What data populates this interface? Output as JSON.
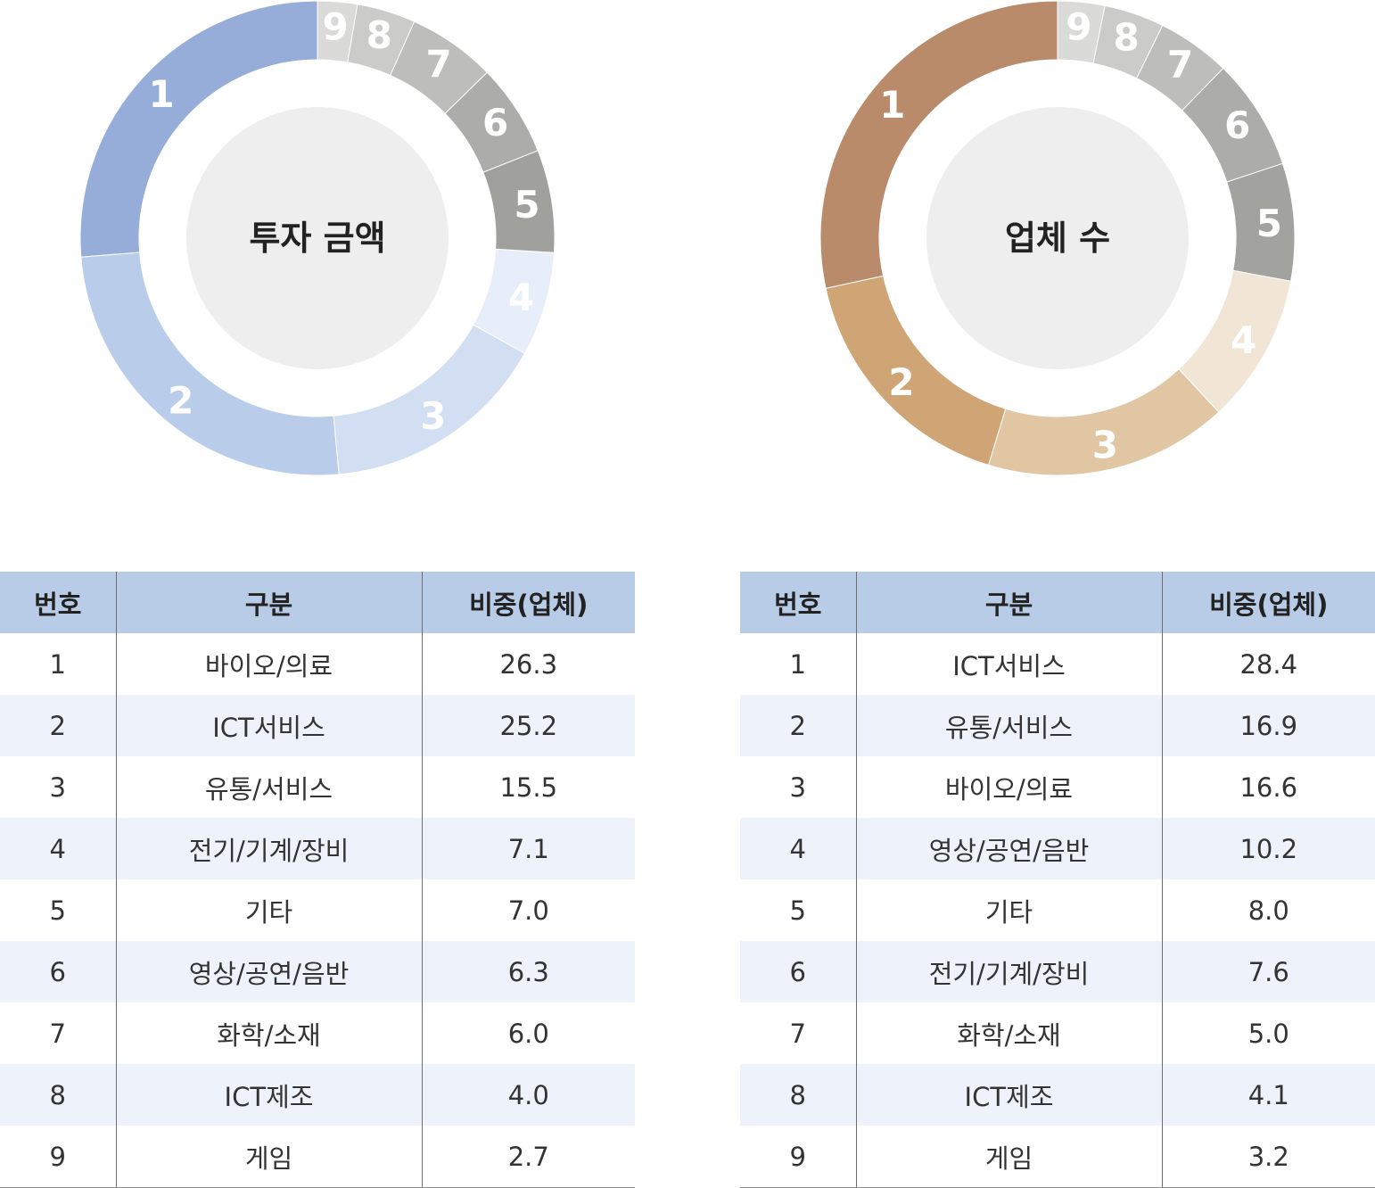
{
  "chart_data": [
    {
      "type": "donut",
      "title": "투자 금액",
      "labels": [
        "1",
        "2",
        "3",
        "4",
        "5",
        "6",
        "7",
        "8",
        "9"
      ],
      "categories": [
        "바이오/의료",
        "ICT서비스",
        "유통/서비스",
        "전기/기계/장비",
        "기타",
        "영상/공연/음반",
        "화학/소재",
        "ICT제조",
        "게임"
      ],
      "values": [
        26.3,
        25.2,
        15.5,
        7.1,
        7.0,
        6.3,
        6.0,
        4.0,
        2.7
      ],
      "colors": [
        "#96acd9",
        "#b9cdea",
        "#d2dff2",
        "#e7eef9",
        "#a0a09d",
        "#acadab",
        "#bdbebc",
        "#cbcbca",
        "#dadad9"
      ],
      "center_color": "#edeeed",
      "direction": "counterclockwise",
      "start": "top"
    },
    {
      "type": "donut",
      "title": "업체 수",
      "labels": [
        "1",
        "2",
        "3",
        "4",
        "5",
        "6",
        "7",
        "8",
        "9"
      ],
      "categories": [
        "ICT서비스",
        "유통/서비스",
        "바이오/의료",
        "영상/공연/음반",
        "기타",
        "전기/기계/장비",
        "화학/소재",
        "ICT제조",
        "게임"
      ],
      "values": [
        28.4,
        16.9,
        16.6,
        10.2,
        8.0,
        7.6,
        5.0,
        4.1,
        3.2
      ],
      "colors": [
        "#b98b6a",
        "#cfa575",
        "#e0c6a3",
        "#f1e5d6",
        "#a2a29f",
        "#acadab",
        "#bdbebc",
        "#cbcbca",
        "#dadad9"
      ],
      "center_color": "#edeeed",
      "direction": "counterclockwise",
      "start": "top"
    }
  ],
  "tables": [
    {
      "headers": [
        "번호",
        "구분",
        "비중(업체)"
      ],
      "rows": [
        [
          "1",
          "바이오/의료",
          "26.3"
        ],
        [
          "2",
          "ICT서비스",
          "25.2"
        ],
        [
          "3",
          "유통/서비스",
          "15.5"
        ],
        [
          "4",
          "전기/기계/장비",
          "7.1"
        ],
        [
          "5",
          "기타",
          "7.0"
        ],
        [
          "6",
          "영상/공연/음반",
          "6.3"
        ],
        [
          "7",
          "화학/소재",
          "6.0"
        ],
        [
          "8",
          "ICT제조",
          "4.0"
        ],
        [
          "9",
          "게임",
          "2.7"
        ]
      ]
    },
    {
      "headers": [
        "번호",
        "구분",
        "비중(업체)"
      ],
      "rows": [
        [
          "1",
          "ICT서비스",
          "28.4"
        ],
        [
          "2",
          "유통/서비스",
          "16.9"
        ],
        [
          "3",
          "바이오/의료",
          "16.6"
        ],
        [
          "4",
          "영상/공연/음반",
          "10.2"
        ],
        [
          "5",
          "기타",
          "8.0"
        ],
        [
          "6",
          "전기/기계/장비",
          "7.6"
        ],
        [
          "7",
          "화학/소재",
          "5.0"
        ],
        [
          "8",
          "ICT제조",
          "4.1"
        ],
        [
          "9",
          "게임",
          "3.2"
        ]
      ]
    }
  ]
}
